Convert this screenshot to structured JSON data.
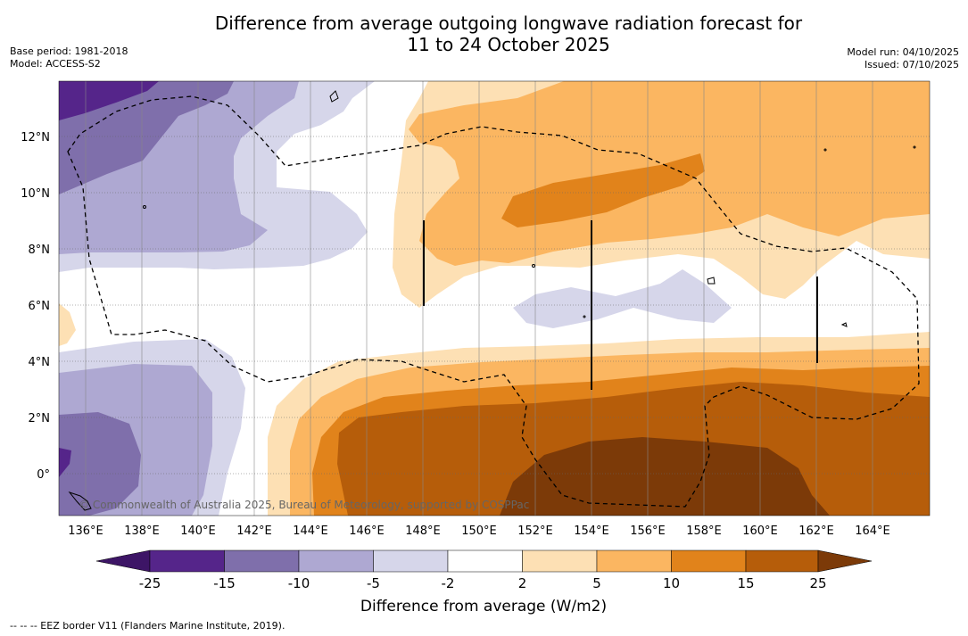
{
  "header": {
    "title_line1": "Difference from average outgoing longwave radiation forecast for",
    "title_line2": "11 to 24 October 2025",
    "base_period": "Base period: 1981-2018",
    "model": "Model: ACCESS-S2",
    "model_run": "Model run: 04/10/2025",
    "issued": "Issued: 07/10/2025"
  },
  "map": {
    "lon_labels": [
      "136°E",
      "138°E",
      "140°E",
      "142°E",
      "144°E",
      "146°E",
      "148°E",
      "150°E",
      "152°E",
      "154°E",
      "156°E",
      "158°E",
      "160°E",
      "162°E",
      "164°E"
    ],
    "lat_labels": [
      "12°N",
      "10°N",
      "8°N",
      "6°N",
      "4°N",
      "2°N",
      "0°"
    ],
    "credit": "© Commonwealth of Australia 2025, Bureau of Meteorology, supported by COSPPac"
  },
  "colorbar": {
    "levels": [
      "-25",
      "-15",
      "-10",
      "-5",
      "-2",
      "2",
      "5",
      "10",
      "15",
      "25"
    ],
    "colors": [
      "#3d1566",
      "#55258a",
      "#7f6fab",
      "#aea8d2",
      "#d6d6ea",
      "#ffffff",
      "#fde0b4",
      "#fbb661",
      "#e1831b",
      "#b65d0a",
      "#7c3a08"
    ],
    "label": "Difference from average (W/m2)"
  },
  "footer": {
    "eez_note": "--  --  -- EEZ border V11 (Flanders Marine Institute, 2019)."
  }
}
